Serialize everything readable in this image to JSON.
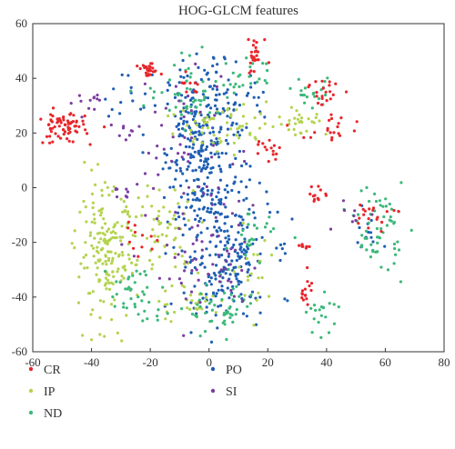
{
  "chart_data": {
    "type": "scatter",
    "title": "HOG-GLCM features",
    "xlabel": "",
    "ylabel": "",
    "xlim": [
      -60,
      80
    ],
    "ylim": [
      -60,
      60
    ],
    "xticks": [
      -60,
      -40,
      -20,
      0,
      20,
      40,
      60,
      80
    ],
    "yticks": [
      -60,
      -40,
      -20,
      0,
      20,
      40,
      60
    ],
    "grid": false,
    "legend_position": "bottom",
    "series": [
      {
        "name": "CR",
        "color": "#e8262b"
      },
      {
        "name": "IP",
        "color": "#b4d34f"
      },
      {
        "name": "ND",
        "color": "#3cb87a"
      },
      {
        "name": "PO",
        "color": "#1f5fb4"
      },
      {
        "name": "SI",
        "color": "#7b3fa0"
      }
    ],
    "clusters": [
      {
        "series": "CR",
        "cx": -50,
        "cy": 22,
        "sx": 4,
        "sy": 3,
        "n": 70
      },
      {
        "series": "CR",
        "cx": -20,
        "cy": 43,
        "sx": 2,
        "sy": 1,
        "n": 25
      },
      {
        "series": "CR",
        "cx": -7,
        "cy": 38,
        "sx": 2,
        "sy": 2,
        "n": 10
      },
      {
        "series": "CR",
        "cx": 16,
        "cy": 48,
        "sx": 2,
        "sy": 4,
        "n": 25
      },
      {
        "series": "CR",
        "cx": 20,
        "cy": 14,
        "sx": 2,
        "sy": 2,
        "n": 15
      },
      {
        "series": "CR",
        "cx": 40,
        "cy": 36,
        "sx": 3,
        "sy": 3,
        "n": 20
      },
      {
        "series": "CR",
        "cx": 42,
        "cy": 22,
        "sx": 5,
        "sy": 3,
        "n": 20
      },
      {
        "series": "CR",
        "cx": 37,
        "cy": -3,
        "sx": 2,
        "sy": 2,
        "n": 12
      },
      {
        "series": "CR",
        "cx": 33,
        "cy": -37,
        "sx": 1,
        "sy": 3,
        "n": 15
      },
      {
        "series": "CR",
        "cx": 32,
        "cy": -21,
        "sx": 1,
        "sy": 1,
        "n": 8
      },
      {
        "series": "CR",
        "cx": 58,
        "cy": -10,
        "sx": 4,
        "sy": 3,
        "n": 18
      },
      {
        "series": "CR",
        "cx": -25,
        "cy": -18,
        "sx": 4,
        "sy": 4,
        "n": 12
      },
      {
        "series": "IP",
        "cx": -35,
        "cy": -25,
        "sx": 5,
        "sy": 12,
        "n": 180
      },
      {
        "series": "IP",
        "cx": -15,
        "cy": -15,
        "sx": 6,
        "sy": 8,
        "n": 60
      },
      {
        "series": "IP",
        "cx": 5,
        "cy": 22,
        "sx": 10,
        "sy": 5,
        "n": 60
      },
      {
        "series": "IP",
        "cx": 30,
        "cy": 25,
        "sx": 5,
        "sy": 3,
        "n": 30
      },
      {
        "series": "IP",
        "cx": 15,
        "cy": -30,
        "sx": 3,
        "sy": 6,
        "n": 20
      },
      {
        "series": "IP",
        "cx": -5,
        "cy": -42,
        "sx": 6,
        "sy": 4,
        "n": 30
      },
      {
        "series": "ND",
        "cx": -5,
        "cy": 35,
        "sx": 8,
        "sy": 6,
        "n": 50
      },
      {
        "series": "ND",
        "cx": -25,
        "cy": -40,
        "sx": 5,
        "sy": 6,
        "n": 40
      },
      {
        "series": "ND",
        "cx": 5,
        "cy": -45,
        "sx": 6,
        "sy": 5,
        "n": 50
      },
      {
        "series": "ND",
        "cx": 58,
        "cy": -15,
        "sx": 4,
        "sy": 8,
        "n": 60
      },
      {
        "series": "ND",
        "cx": 38,
        "cy": -45,
        "sx": 3,
        "sy": 4,
        "n": 20
      },
      {
        "series": "ND",
        "cx": 35,
        "cy": 34,
        "sx": 4,
        "sy": 3,
        "n": 20
      },
      {
        "series": "ND",
        "cx": 13,
        "cy": 40,
        "sx": 4,
        "sy": 3,
        "n": 20
      },
      {
        "series": "ND",
        "cx": 15,
        "cy": -20,
        "sx": 4,
        "sy": 5,
        "n": 25
      },
      {
        "series": "PO",
        "cx": -3,
        "cy": 15,
        "sx": 6,
        "sy": 16,
        "n": 280
      },
      {
        "series": "PO",
        "cx": 5,
        "cy": -25,
        "sx": 8,
        "sy": 14,
        "n": 230
      },
      {
        "series": "PO",
        "cx": 10,
        "cy": 30,
        "sx": 5,
        "sy": 8,
        "n": 40
      },
      {
        "series": "PO",
        "cx": -28,
        "cy": 30,
        "sx": 4,
        "sy": 6,
        "n": 15
      },
      {
        "series": "PO",
        "cx": 55,
        "cy": -15,
        "sx": 4,
        "sy": 4,
        "n": 12
      },
      {
        "series": "SI",
        "cx": -8,
        "cy": 10,
        "sx": 10,
        "sy": 20,
        "n": 60
      },
      {
        "series": "SI",
        "cx": 0,
        "cy": -30,
        "sx": 10,
        "sy": 12,
        "n": 50
      },
      {
        "series": "SI",
        "cx": -40,
        "cy": 30,
        "sx": 3,
        "sy": 3,
        "n": 12
      },
      {
        "series": "SI",
        "cx": -28,
        "cy": 22,
        "sx": 2,
        "sy": 2,
        "n": 8
      },
      {
        "series": "SI",
        "cx": 50,
        "cy": -10,
        "sx": 4,
        "sy": 3,
        "n": 8
      },
      {
        "series": "SI",
        "cx": -30,
        "cy": -2,
        "sx": 2,
        "sy": 2,
        "n": 8
      }
    ]
  }
}
